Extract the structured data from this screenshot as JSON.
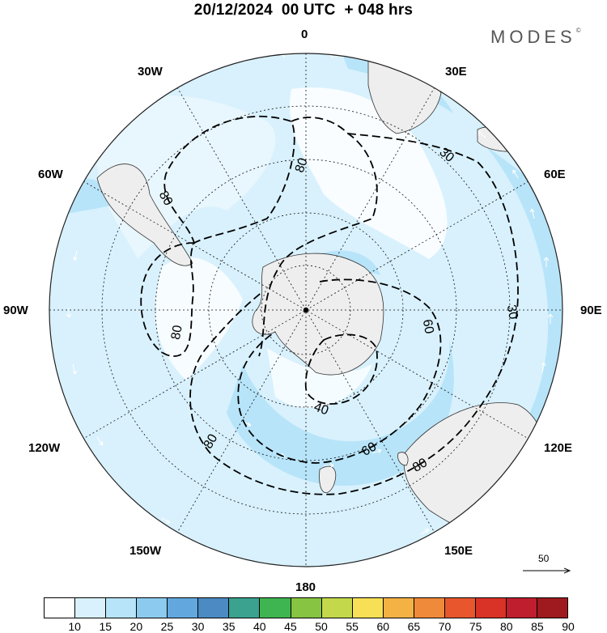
{
  "header": {
    "title": "20/12/2024  00 UTC  + 048 hrs",
    "brand": "MODES",
    "brand_mark": "©"
  },
  "longitudes": {
    "n0": "0",
    "e30": "30E",
    "e60": "60E",
    "e90": "90E",
    "e120": "120E",
    "e150": "150E",
    "s180": "180",
    "w150": "150W",
    "w120": "120W",
    "w90": "90W",
    "w60": "60W",
    "w30": "30W"
  },
  "contours": {
    "l80_top": "80",
    "l80_tl": "80",
    "l80_left": "80",
    "l80_bl": "80",
    "l80_br": "80",
    "l60_right": "60",
    "l60_bottom": "60",
    "l40": "40",
    "l30_upper": "30",
    "l30_right": "30"
  },
  "reference_vector": {
    "value": "50"
  },
  "colorbar": {
    "colors": [
      "#ffffff",
      "#d8f1fd",
      "#b7e4f9",
      "#8ccbef",
      "#62a8de",
      "#4b8ac2",
      "#3aa28f",
      "#3fb551",
      "#86c442",
      "#c3d94b",
      "#f7e055",
      "#f4b144",
      "#ef8a3a",
      "#e7562d",
      "#d93226",
      "#be1e2d",
      "#9e1a1e"
    ],
    "labels": [
      "10",
      "15",
      "20",
      "25",
      "30",
      "35",
      "40",
      "45",
      "50",
      "55",
      "60",
      "65",
      "70",
      "75",
      "80",
      "85",
      "90"
    ]
  }
}
